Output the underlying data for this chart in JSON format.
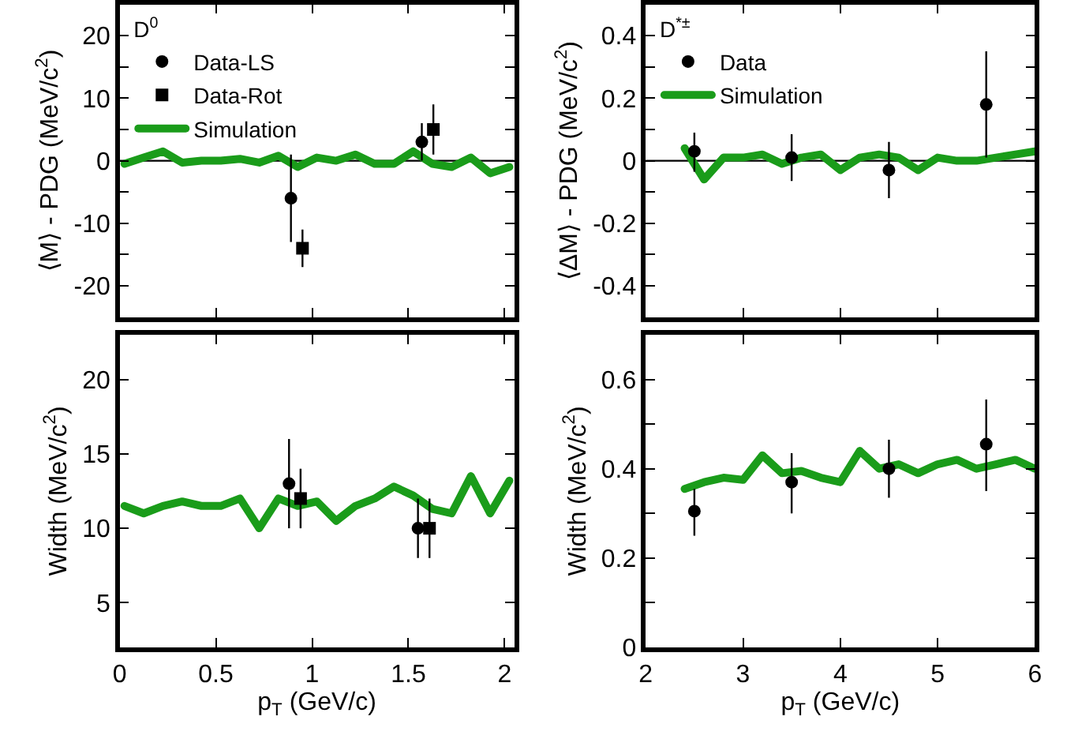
{
  "chart_data": [
    {
      "type": "scatter",
      "ylabel": "⟨M⟩ - PDG (MeV/c$^{2}$)",
      "legend_title": "D$^{0}$",
      "legend": "top left",
      "grid": false,
      "tick_labels": "y",
      "xlim": [
        0,
        2.05
      ],
      "xticks": [
        0,
        0.5,
        1,
        1.5,
        2
      ],
      "ylim": [
        -25,
        25
      ],
      "yticks": [
        -20,
        {
          "value": -15,
          "label": null
        },
        -10,
        {
          "value": -5,
          "label": null
        },
        0,
        {
          "value": 5,
          "label": null
        },
        10,
        {
          "value": 15,
          "label": null
        },
        20
      ],
      "ref_lines": [
        {
          "axis": "y",
          "value": 0,
          "color": "#000000"
        }
      ],
      "series": [
        {
          "name": "Data-LS",
          "marker": "circle",
          "color": "#000000",
          "x": [
            0.89,
            1.57
          ],
          "values": [
            -6,
            3
          ],
          "errors": [
            [
              -13,
              1
            ],
            [
              0,
              6
            ]
          ]
        },
        {
          "name": "Data-Rot",
          "marker": "square",
          "color": "#000000",
          "x": [
            0.95,
            1.63
          ],
          "values": [
            -14,
            5
          ],
          "errors": [
            [
              -17,
              -11
            ],
            [
              1,
              9
            ]
          ]
        },
        {
          "name": "Simulation",
          "type": "line",
          "marker": "none",
          "color": "#1a9c1a",
          "x": [
            0.025,
            0.125,
            0.225,
            0.325,
            0.425,
            0.525,
            0.625,
            0.725,
            0.825,
            0.925,
            1.025,
            1.125,
            1.225,
            1.325,
            1.425,
            1.525,
            1.625,
            1.725,
            1.825,
            1.925,
            2.025
          ],
          "values": [
            -0.5,
            0.5,
            1.5,
            -0.3,
            0,
            0,
            0.3,
            -0.3,
            0.8,
            -1,
            0.5,
            0,
            1,
            -0.5,
            -0.5,
            1.5,
            -0.5,
            -1,
            0.5,
            -2,
            -1
          ]
        }
      ]
    },
    {
      "type": "scatter",
      "ylabel": "⟨ΔM⟩ - PDG (MeV/c$^{2}$)",
      "legend_title": "D$^{*±}$",
      "legend": "top left",
      "grid": false,
      "tick_labels": "y",
      "xlim": [
        2,
        6
      ],
      "xticks": [
        2,
        3,
        4,
        5,
        6
      ],
      "ylim": [
        -0.5,
        0.5
      ],
      "yticks": [
        -0.4,
        {
          "value": -0.3,
          "label": null
        },
        -0.2,
        {
          "value": -0.1,
          "label": null
        },
        0,
        {
          "value": 0.1,
          "label": null
        },
        0.2,
        {
          "value": 0.3,
          "label": null
        },
        0.4
      ],
      "ref_lines": [
        {
          "axis": "y",
          "value": 0,
          "color": "#000000"
        }
      ],
      "series": [
        {
          "name": "Data",
          "marker": "circle",
          "color": "#000000",
          "x": [
            2.5,
            3.5,
            4.5,
            5.5
          ],
          "values": [
            0.03,
            0.01,
            -0.03,
            0.18
          ],
          "errors": [
            [
              -0.035,
              0.09
            ],
            [
              -0.065,
              0.085
            ],
            [
              -0.12,
              0.06
            ],
            [
              0.01,
              0.35
            ]
          ]
        },
        {
          "name": "Simulation",
          "type": "line",
          "marker": "none",
          "color": "#1a9c1a",
          "x": [
            2.4,
            2.6,
            2.8,
            3.0,
            3.2,
            3.4,
            3.6,
            3.8,
            4.0,
            4.2,
            4.4,
            4.6,
            4.8,
            5.0,
            5.2,
            5.4,
            5.6,
            5.8,
            6.0
          ],
          "values": [
            0.04,
            -0.06,
            0.01,
            0.01,
            0.02,
            -0.01,
            0.01,
            0.02,
            -0.03,
            0.01,
            0.02,
            0.01,
            -0.03,
            0.01,
            0,
            0,
            0.01,
            0.02,
            0.03
          ]
        }
      ]
    },
    {
      "type": "scatter",
      "xlabel": "p$_{T}$ (GeV/c)",
      "ylabel": "Width (MeV/c$^{2}$)",
      "grid": false,
      "xlim": [
        0,
        2.05
      ],
      "xticks": [
        0,
        0.5,
        1,
        1.5,
        2
      ],
      "ylim": [
        2,
        23
      ],
      "yticks": [
        5,
        10,
        15,
        20
      ],
      "series": [
        {
          "marker": "circle",
          "color": "#000000",
          "x": [
            0.88,
            1.55
          ],
          "values": [
            13,
            10
          ],
          "errors": [
            [
              10,
              16
            ],
            [
              8,
              12
            ]
          ]
        },
        {
          "marker": "square",
          "color": "#000000",
          "x": [
            0.94,
            1.61
          ],
          "values": [
            12,
            10
          ],
          "errors": [
            [
              10,
              14
            ],
            [
              8,
              12
            ]
          ]
        },
        {
          "type": "line",
          "marker": "none",
          "color": "#1a9c1a",
          "x": [
            0.025,
            0.125,
            0.225,
            0.325,
            0.425,
            0.525,
            0.625,
            0.725,
            0.825,
            0.925,
            1.025,
            1.125,
            1.225,
            1.325,
            1.425,
            1.525,
            1.625,
            1.725,
            1.825,
            1.925,
            2.025
          ],
          "values": [
            11.5,
            11,
            11.5,
            11.8,
            11.5,
            11.5,
            12,
            10,
            12,
            11.5,
            11.8,
            10.5,
            11.5,
            12,
            12.8,
            12.2,
            11.3,
            11,
            13.5,
            11,
            13.2
          ]
        }
      ]
    },
    {
      "type": "scatter",
      "xlabel": "p$_{T}$ (GeV/c)",
      "ylabel": "Width (MeV/c$^{2}$)",
      "grid": false,
      "xlim": [
        2,
        6
      ],
      "xticks": [
        2,
        3,
        4,
        5,
        6
      ],
      "ylim": [
        0,
        0.7
      ],
      "yticks": [
        0,
        {
          "value": 0.1,
          "label": null
        },
        0.2,
        {
          "value": 0.3,
          "label": null
        },
        0.4,
        {
          "value": 0.5,
          "label": null
        },
        0.6
      ],
      "series": [
        {
          "marker": "circle",
          "color": "#000000",
          "x": [
            2.5,
            3.5,
            4.5,
            5.5
          ],
          "values": [
            0.305,
            0.37,
            0.4,
            0.455
          ],
          "errors": [
            [
              0.25,
              0.355
            ],
            [
              0.3,
              0.435
            ],
            [
              0.335,
              0.465
            ],
            [
              0.35,
              0.555
            ]
          ]
        },
        {
          "type": "line",
          "marker": "none",
          "color": "#1a9c1a",
          "x": [
            2.4,
            2.6,
            2.8,
            3.0,
            3.2,
            3.4,
            3.6,
            3.8,
            4.0,
            4.2,
            4.4,
            4.6,
            4.8,
            5.0,
            5.2,
            5.4,
            5.6,
            5.8,
            6.0
          ],
          "values": [
            0.355,
            0.37,
            0.38,
            0.375,
            0.43,
            0.39,
            0.395,
            0.38,
            0.37,
            0.44,
            0.4,
            0.41,
            0.39,
            0.41,
            0.42,
            0.4,
            0.41,
            0.42,
            0.4
          ]
        }
      ]
    }
  ]
}
